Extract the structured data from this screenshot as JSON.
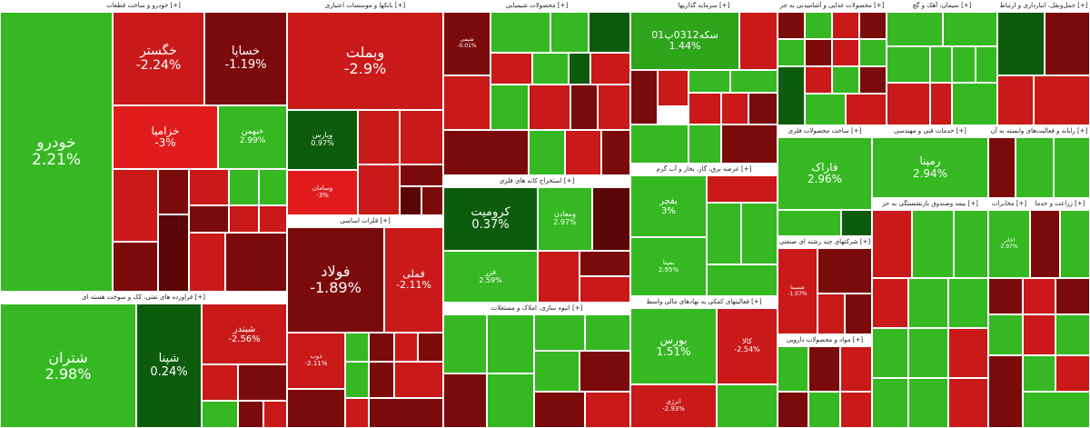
{
  "colors": {
    "up_strong": "#2fa51c",
    "up_mid": "#35b822",
    "up_dark": "#0d5c0d",
    "down_light": "#e11b1b",
    "down_mid": "#c91919",
    "down_dark": "#7b0b0b",
    "down_deep": "#5a0606",
    "neutral": "#4a0d0d"
  },
  "sectors": [
    {
      "id": "auto",
      "title": "خودرو و ساخت قطعات [+]"
    },
    {
      "id": "banks",
      "title": "بانکها و موسسات اعتباری [+]"
    },
    {
      "id": "chem",
      "title": "محصولات شیمیایی [+]"
    },
    {
      "id": "invest",
      "title": "سرمایه گذاریها [+]"
    },
    {
      "id": "food",
      "title": "محصولات غذایی و آشامیدنی به جز [+]"
    },
    {
      "id": "cement",
      "title": "سیمان، آهک و گچ [+]"
    },
    {
      "id": "telecom",
      "title": "حمل‌ونقل، انبارداری و ارتباط [+]"
    },
    {
      "id": "metals",
      "title": "فلزات اساسی [+]"
    },
    {
      "id": "mining",
      "title": "استخراج کانه های فلزی [+]"
    },
    {
      "id": "power",
      "title": "عرضه برق، گاز، بخار و آب گرم [+]"
    },
    {
      "id": "refinery",
      "title": "فراورده های نفتی، کک و سوخت هسته ای [+]"
    },
    {
      "id": "realestate",
      "title": "انبوه سازی، املاک و مستغلات [+]"
    },
    {
      "id": "finance",
      "title": "فعالیتهای کمکی به نهادهای مالی واسط [+]"
    },
    {
      "id": "techsvc",
      "title": "ساخت محصولات فلزی [+]"
    },
    {
      "id": "engsvc",
      "title": "خدمات فنی و مهندسی [+]"
    },
    {
      "id": "multi",
      "title": "شرکتهای چند رشته ای صنعتی [+]"
    },
    {
      "id": "pharma",
      "title": "مواد و محصولات دارویی [+]"
    },
    {
      "id": "retail",
      "title": "رایانه و فعالیت‌های وابسته به آن [+]"
    },
    {
      "id": "misc1",
      "title": "بیمه وصندوق بازنشستگی به جز [+]"
    },
    {
      "id": "misc2",
      "title": "مخابرات [+]"
    },
    {
      "id": "misc3",
      "title": "زراعت و خدما [+]"
    }
  ],
  "stocks": {
    "khodro": {
      "sym": "خودرو",
      "pct": "2.21%"
    },
    "khegostar": {
      "sym": "خگستر",
      "pct": "-2.24%"
    },
    "khsapa": {
      "sym": "خساپا",
      "pct": "-1.19%"
    },
    "khazamia": {
      "sym": "خزامیا",
      "pct": "-3%"
    },
    "khbahman": {
      "sym": "خبهمن",
      "pct": "2.99%"
    },
    "vbmellat": {
      "sym": "وبملت",
      "pct": "-2.9%"
    },
    "vpars": {
      "sym": "وپارس",
      "pct": "0.97%"
    },
    "vsamand": {
      "sym": "وسامان",
      "pct": "-3%"
    },
    "kroomit": {
      "sym": "کرومیت",
      "pct": "0.37%"
    },
    "vmaadan": {
      "sym": "ومعادن",
      "pct": "2.97%"
    },
    "fazar": {
      "sym": "فزر",
      "pct": "2.59%"
    },
    "sekke": {
      "sym": "سکه0312پ01",
      "pct": "1.44%"
    },
    "bajar": {
      "sym": "بفجر",
      "pct": "3%"
    },
    "bmin": {
      "sym": "بمپنا",
      "pct": "2.95%"
    },
    "farak": {
      "sym": "فاراک",
      "pct": "2.96%"
    },
    "ramina": {
      "sym": "رمپنا",
      "pct": "2.94%"
    },
    "foolad": {
      "sym": "فولاد",
      "pct": "-1.89%"
    },
    "fameli": {
      "sym": "فملی",
      "pct": "-2.11%"
    },
    "shetran": {
      "sym": "شتران",
      "pct": "2.98%"
    },
    "shepna": {
      "sym": "شپنا",
      "pct": "0.24%"
    },
    "shebandar": {
      "sym": "شبندر",
      "pct": "-2.56%"
    },
    "boors": {
      "sym": "بورس",
      "pct": "1.51%"
    },
    "kala": {
      "sym": "کالا",
      "pct": "-2.54%"
    },
    "anrzhi": {
      "sym": "انرژی",
      "pct": "-2.93%"
    },
    "akhaber": {
      "sym": "اخابر",
      "pct": "2.97%"
    },
    "shsina": {
      "sym": "شسینا",
      "pct": "-1.07%"
    },
    "zob": {
      "sym": "ذوب",
      "pct": "-2.11%"
    },
    "misc_chem": {
      "sym": "شیمی",
      "pct": "-0.01%"
    }
  }
}
